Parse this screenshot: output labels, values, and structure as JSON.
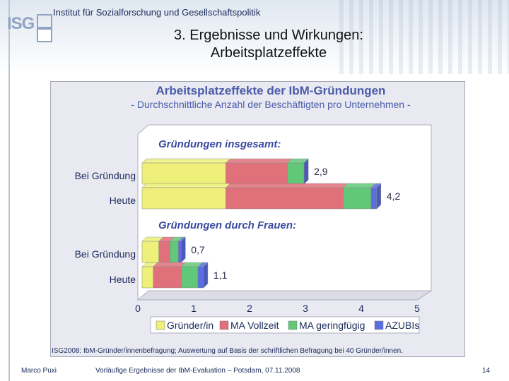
{
  "header": {
    "institute": "Institut für Sozialforschung und Gesellschaftspolitik",
    "logo_text": "ISG",
    "title_line1": "3. Ergebnisse und Wirkungen:",
    "title_line2": "Arbeitsplatzeffekte"
  },
  "colors": {
    "gruender": "#eef07a",
    "vollzeit": "#e0707a",
    "geringfuegig": "#60c878",
    "azubis": "#5a6ee0",
    "title_blue": "#4a5caa",
    "section_blue": "#3a4aa0"
  },
  "chart_data": {
    "type": "bar",
    "orientation": "horizontal",
    "stacked": true,
    "title": "Arbeitsplatzeffekte der IbM-Gründungen",
    "subtitle": "- Durchschnittliche Anzahl der Beschäftigten pro Unternehmen -",
    "xlim": [
      0,
      5
    ],
    "xticks": [
      "0",
      "1",
      "2",
      "3",
      "4",
      "5"
    ],
    "legend": [
      "Gründer/in",
      "MA Vollzeit",
      "MA geringfügig",
      "AZUBIs"
    ],
    "groups": [
      {
        "label": "Gründungen insgesamt:",
        "bars": [
          {
            "category": "Bei Gründung",
            "values": [
              1.5,
              1.1,
              0.3,
              0.0
            ],
            "total_label": "2,9"
          },
          {
            "category": "Heute",
            "values": [
              1.5,
              2.1,
              0.5,
              0.1
            ],
            "total_label": "4,2"
          }
        ]
      },
      {
        "label": "Gründungen durch Frauen:",
        "bars": [
          {
            "category": "Bei Gründung",
            "values": [
              0.3,
              0.2,
              0.15,
              0.05
            ],
            "total_label": "0,7"
          },
          {
            "category": "Heute",
            "values": [
              0.2,
              0.5,
              0.3,
              0.1
            ],
            "total_label": "1,1"
          }
        ]
      }
    ],
    "source_note": "ISG2008: IbM-Gründer/innenbefragung; Auswertung auf Basis der schriftlichen Befragung bei 40 Gründer/innen."
  },
  "footer": {
    "author": "Marco Puxi",
    "event": "Vorläufige Ergebnisse der IbM-Evaluation – Potsdam, 07.11.2008",
    "page": "14"
  }
}
